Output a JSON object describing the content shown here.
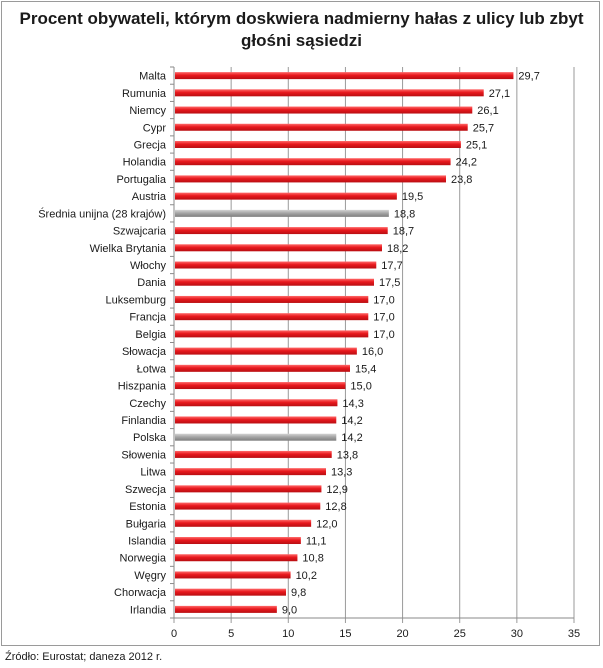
{
  "chart_data": {
    "type": "bar",
    "orientation": "horizontal",
    "title_lines": [
      "Procent obywateli, którym doskwiera nadmierny hałas z ulicy lub zbyt",
      "głośni sąsiedzi"
    ],
    "categories": [
      "Malta",
      "Rumunia",
      "Niemcy",
      "Cypr",
      "Grecja",
      "Holandia",
      "Portugalia",
      "Austria",
      "Średnia unijna (28 krajów)",
      "Szwajcaria",
      "Wielka Brytania",
      "Włochy",
      "Dania",
      "Luksemburg",
      "Francja",
      "Belgia",
      "Słowacja",
      "Łotwa",
      "Hiszpania",
      "Czechy",
      "Finlandia",
      "Polska",
      "Słowenia",
      "Litwa",
      "Szwecja",
      "Estonia",
      "Bułgaria",
      "Islandia",
      "Norwegia",
      "Węgry",
      "Chorwacja",
      "Irlandia"
    ],
    "values": [
      29.7,
      27.1,
      26.1,
      25.7,
      25.1,
      24.2,
      23.8,
      19.5,
      18.8,
      18.7,
      18.2,
      17.7,
      17.5,
      17.0,
      17.0,
      17.0,
      16.0,
      15.4,
      15.0,
      14.3,
      14.2,
      14.2,
      13.8,
      13.3,
      12.9,
      12.8,
      12.0,
      11.1,
      10.8,
      10.2,
      9.8,
      9.0
    ],
    "value_labels": [
      "29,7",
      "27,1",
      "26,1",
      "25,7",
      "25,1",
      "24,2",
      "23,8",
      "19,5",
      "18,8",
      "18,7",
      "18,2",
      "17,7",
      "17,5",
      "17,0",
      "17,0",
      "17,0",
      "16,0",
      "15,4",
      "15,0",
      "14,3",
      "14,2",
      "14,2",
      "13,8",
      "13,3",
      "12,9",
      "12,8",
      "12,0",
      "11,1",
      "10,8",
      "10,2",
      "9,8",
      "9,0"
    ],
    "highlighted": [
      "Średnia unijna (28 krajów)",
      "Polska"
    ],
    "xlim": [
      0,
      35
    ],
    "x_ticks": [
      0,
      5,
      10,
      15,
      20,
      25,
      30,
      35
    ],
    "grid": "vertical",
    "colors": {
      "bar": "#e8181d",
      "bar_highlight": "#a6a6a6",
      "grid": "#9a9a9a"
    }
  },
  "source": "Źródło: Eurostat; daneza 2012 r."
}
